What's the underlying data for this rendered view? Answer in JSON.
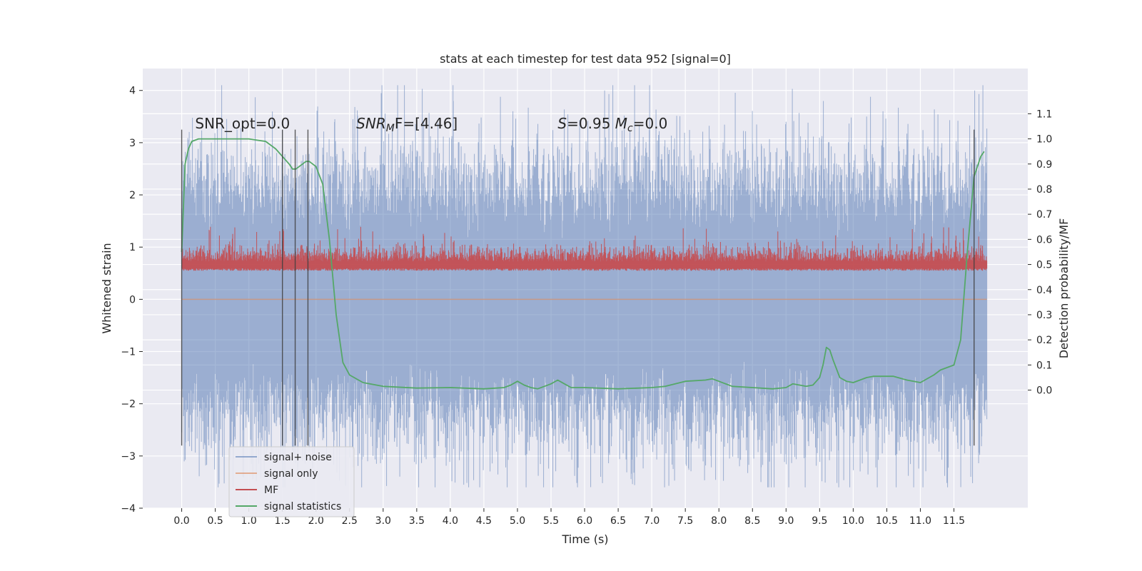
{
  "chart_data": {
    "type": "line",
    "title": "stats at each timestep for test data 952 [signal=0]",
    "xlabel": "Time (s)",
    "ylabel": "Whitened strain",
    "y2label": "Detection probability/MF",
    "xlim": [
      -0.58,
      12.6
    ],
    "ylim": [
      -4.0,
      4.42
    ],
    "y2lim": [
      -0.47,
      1.28
    ],
    "x_ticks": [
      0.0,
      0.5,
      1.0,
      1.5,
      2.0,
      2.5,
      3.0,
      3.5,
      4.0,
      4.5,
      5.0,
      5.5,
      6.0,
      6.5,
      7.0,
      7.5,
      8.0,
      8.5,
      9.0,
      9.5,
      10.0,
      10.5,
      11.0,
      11.5
    ],
    "x_tick_labels": [
      "0.0",
      "0.5",
      "1.0",
      "1.5",
      "2.0",
      "2.5",
      "3.0",
      "3.5",
      "4.0",
      "4.5",
      "5.0",
      "5.5",
      "6.0",
      "6.5",
      "7.0",
      "7.5",
      "8.0",
      "8.5",
      "9.0",
      "9.5",
      "10.0",
      "10.5",
      "11.0",
      "11.5"
    ],
    "y_ticks": [
      -4,
      -3,
      -2,
      -1,
      0,
      1,
      2,
      3,
      4
    ],
    "y_tick_labels": [
      "−4",
      "−3",
      "−2",
      "−1",
      "0",
      "1",
      "2",
      "3",
      "4"
    ],
    "y2_ticks": [
      0.0,
      0.1,
      0.2,
      0.3,
      0.4,
      0.5,
      0.6,
      0.7,
      0.8,
      0.9,
      1.0,
      1.1
    ],
    "y2_tick_labels": [
      "0.0",
      "0.1",
      "0.2",
      "0.3",
      "0.4",
      "0.5",
      "0.6",
      "0.7",
      "0.8",
      "0.9",
      "1.0",
      "1.1"
    ],
    "grid": true,
    "legend_position": "lower-left",
    "annotations": [
      {
        "text": "SNR_opt=0.0",
        "x": 0.2
      },
      {
        "text": "SNR_MF=[4.46]",
        "x": 2.6
      },
      {
        "text": "S=0.95   M_c=0.0",
        "x": 5.6
      }
    ],
    "annotation_y": 3.27,
    "vlines": [
      {
        "x": 0.0,
        "ymin": -2.8,
        "ymax": 3.25
      },
      {
        "x": 1.5,
        "ymin": -2.8,
        "ymax": 3.25
      },
      {
        "x": 1.69,
        "ymin": -2.8,
        "ymax": 3.25
      },
      {
        "x": 1.88,
        "ymin": -2.8,
        "ymax": 3.25
      },
      {
        "x": 11.8,
        "ymin": -2.8,
        "ymax": 3.25
      }
    ],
    "series": [
      {
        "name": "signal+ noise",
        "color": "#4c72b0",
        "opacity": 0.5,
        "axis": "left",
        "x_range": [
          0.0,
          11.99
        ],
        "envelope_mean": 0.0,
        "envelope_std": 1.0,
        "max": 4.1,
        "min": -3.6
      },
      {
        "name": "signal only",
        "color": "#dd8452",
        "opacity": 0.6,
        "axis": "left",
        "x_range": [
          0.0,
          11.99
        ],
        "constant": 0.0
      },
      {
        "name": "MF",
        "color": "#c44e52",
        "opacity": 0.95,
        "axis": "right",
        "x_range": [
          0.0,
          11.99
        ],
        "baseline": 0.5,
        "typical_peak": 0.57,
        "max_peak": 0.65
      },
      {
        "name": "signal statistics",
        "color": "#55a868",
        "axis": "right",
        "x": [
          0.0,
          0.05,
          0.1,
          0.15,
          0.25,
          0.5,
          1.0,
          1.25,
          1.4,
          1.5,
          1.6,
          1.65,
          1.7,
          1.8,
          1.85,
          1.9,
          2.0,
          2.1,
          2.2,
          2.3,
          2.4,
          2.5,
          2.7,
          3.0,
          3.5,
          4.0,
          4.5,
          4.8,
          4.9,
          5.0,
          5.1,
          5.2,
          5.3,
          5.5,
          5.6,
          5.7,
          5.8,
          6.0,
          6.5,
          7.0,
          7.2,
          7.5,
          7.8,
          7.9,
          8.0,
          8.2,
          8.5,
          8.8,
          9.0,
          9.1,
          9.3,
          9.4,
          9.5,
          9.55,
          9.6,
          9.65,
          9.7,
          9.8,
          9.9,
          10.0,
          10.1,
          10.2,
          10.3,
          10.4,
          10.6,
          10.8,
          11.0,
          11.2,
          11.3,
          11.4,
          11.5,
          11.6,
          11.7,
          11.8,
          11.9,
          11.95
        ],
        "values": [
          0.55,
          0.9,
          0.96,
          0.99,
          1.0,
          1.0,
          1.0,
          0.99,
          0.96,
          0.93,
          0.9,
          0.88,
          0.88,
          0.9,
          0.91,
          0.91,
          0.89,
          0.82,
          0.6,
          0.3,
          0.11,
          0.06,
          0.03,
          0.015,
          0.008,
          0.01,
          0.005,
          0.01,
          0.02,
          0.035,
          0.02,
          0.01,
          0.005,
          0.025,
          0.04,
          0.025,
          0.01,
          0.01,
          0.005,
          0.01,
          0.015,
          0.035,
          0.04,
          0.045,
          0.035,
          0.015,
          0.01,
          0.005,
          0.01,
          0.025,
          0.015,
          0.02,
          0.05,
          0.1,
          0.17,
          0.16,
          0.12,
          0.05,
          0.035,
          0.03,
          0.04,
          0.05,
          0.055,
          0.055,
          0.055,
          0.04,
          0.03,
          0.06,
          0.08,
          0.09,
          0.1,
          0.2,
          0.55,
          0.85,
          0.93,
          0.95
        ]
      }
    ]
  }
}
